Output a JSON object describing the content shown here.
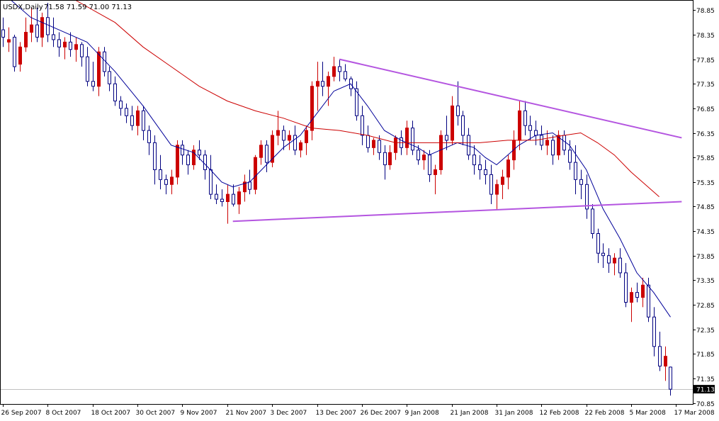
{
  "header": {
    "symbol": "USDX,Daily",
    "ohlc": "71.58 71.59 71.00 71.13"
  },
  "colors": {
    "background": "#ffffff",
    "frame": "#000000",
    "bull_candle": "#cc0000",
    "bear_candle": "#000080",
    "ma_fast": "#000099",
    "ma_slow": "#cc0000",
    "trendline": "#b455e0",
    "bid_line": "#c0c0c0",
    "price_tag_bg": "#000000",
    "price_tag_fg": "#ffffff"
  },
  "chart_data": {
    "type": "candlestick",
    "ylim": [
      70.85,
      79.05
    ],
    "y_ticks": [
      "78.85",
      "78.35",
      "77.85",
      "77.35",
      "76.85",
      "76.35",
      "75.85",
      "75.35",
      "74.85",
      "74.35",
      "73.85",
      "73.35",
      "72.85",
      "72.35",
      "71.85",
      "71.35",
      "70.85"
    ],
    "x_labels": [
      {
        "i": 0,
        "label": "26 Sep 2007"
      },
      {
        "i": 8,
        "label": "8 Oct 2007"
      },
      {
        "i": 16,
        "label": "18 Oct 2007"
      },
      {
        "i": 24,
        "label": "30 Oct 2007"
      },
      {
        "i": 32,
        "label": "9 Nov 2007"
      },
      {
        "i": 40,
        "label": "21 Nov 2007"
      },
      {
        "i": 48,
        "label": "3 Dec 2007"
      },
      {
        "i": 56,
        "label": "13 Dec 2007"
      },
      {
        "i": 64,
        "label": "26 Dec 2007"
      },
      {
        "i": 72,
        "label": "9 Jan 2008"
      },
      {
        "i": 80,
        "label": "21 Jan 2008"
      },
      {
        "i": 88,
        "label": "31 Jan 2008"
      },
      {
        "i": 96,
        "label": "12 Feb 2008"
      },
      {
        "i": 104,
        "label": "22 Feb 2008"
      },
      {
        "i": 112,
        "label": "5 Mar 2008"
      },
      {
        "i": 120,
        "label": "17 Mar 2008"
      }
    ],
    "candles": [
      [
        78.45,
        78.7,
        78.1,
        78.3
      ],
      [
        78.2,
        78.5,
        78.0,
        78.25
      ],
      [
        78.3,
        78.35,
        77.6,
        77.7
      ],
      [
        77.75,
        78.2,
        77.6,
        78.1
      ],
      [
        78.1,
        78.7,
        78.0,
        78.4
      ],
      [
        78.4,
        78.9,
        78.2,
        78.55
      ],
      [
        78.55,
        78.9,
        78.2,
        78.3
      ],
      [
        78.3,
        78.8,
        78.1,
        78.7
      ],
      [
        78.7,
        79.0,
        78.2,
        78.35
      ],
      [
        78.35,
        78.7,
        78.1,
        78.25
      ],
      [
        78.25,
        78.4,
        77.9,
        78.1
      ],
      [
        78.1,
        78.3,
        77.85,
        78.2
      ],
      [
        78.2,
        78.4,
        77.9,
        78.05
      ],
      [
        78.05,
        78.3,
        77.8,
        78.15
      ],
      [
        78.15,
        78.2,
        77.7,
        77.9
      ],
      [
        77.9,
        78.1,
        77.3,
        77.4
      ],
      [
        77.4,
        77.8,
        77.2,
        77.3
      ],
      [
        77.3,
        78.1,
        77.1,
        78.0
      ],
      [
        78.0,
        78.1,
        77.5,
        77.6
      ],
      [
        77.6,
        77.7,
        77.2,
        77.35
      ],
      [
        77.35,
        77.5,
        76.9,
        77.0
      ],
      [
        77.0,
        77.1,
        76.7,
        76.85
      ],
      [
        76.85,
        76.95,
        76.55,
        76.7
      ],
      [
        76.7,
        76.9,
        76.4,
        76.5
      ],
      [
        76.5,
        76.9,
        76.3,
        76.8
      ],
      [
        76.8,
        76.9,
        76.2,
        76.4
      ],
      [
        76.4,
        76.5,
        75.9,
        76.15
      ],
      [
        76.15,
        76.3,
        75.3,
        75.6
      ],
      [
        75.6,
        75.9,
        75.2,
        75.4
      ],
      [
        75.4,
        75.5,
        75.1,
        75.3
      ],
      [
        75.3,
        75.6,
        75.1,
        75.45
      ],
      [
        75.45,
        76.2,
        75.3,
        76.1
      ],
      [
        76.1,
        76.2,
        75.7,
        75.9
      ],
      [
        75.9,
        76.0,
        75.5,
        75.7
      ],
      [
        75.7,
        76.1,
        75.6,
        76.0
      ],
      [
        76.0,
        76.2,
        75.8,
        75.9
      ],
      [
        75.9,
        76.0,
        75.4,
        75.6
      ],
      [
        75.6,
        75.9,
        75.0,
        75.1
      ],
      [
        75.1,
        75.3,
        74.9,
        75.0
      ],
      [
        75.0,
        75.2,
        74.85,
        74.95
      ],
      [
        74.95,
        75.3,
        74.5,
        75.1
      ],
      [
        75.1,
        75.3,
        74.85,
        74.9
      ],
      [
        74.9,
        75.25,
        74.7,
        75.15
      ],
      [
        75.15,
        75.5,
        74.95,
        75.35
      ],
      [
        75.35,
        75.6,
        75.1,
        75.2
      ],
      [
        75.2,
        75.9,
        75.1,
        75.85
      ],
      [
        75.85,
        76.2,
        75.7,
        76.1
      ],
      [
        76.1,
        76.2,
        75.55,
        75.75
      ],
      [
        75.75,
        76.4,
        75.65,
        76.3
      ],
      [
        76.3,
        76.8,
        76.1,
        76.4
      ],
      [
        76.4,
        76.5,
        76.0,
        76.2
      ],
      [
        76.2,
        76.4,
        76.0,
        76.3
      ],
      [
        76.3,
        76.5,
        75.9,
        76.0
      ],
      [
        76.0,
        76.2,
        75.85,
        76.15
      ],
      [
        76.15,
        76.5,
        75.9,
        76.4
      ],
      [
        76.4,
        77.4,
        76.2,
        77.3
      ],
      [
        77.3,
        77.8,
        76.8,
        77.4
      ],
      [
        77.4,
        77.8,
        77.1,
        77.3
      ],
      [
        77.3,
        77.6,
        76.9,
        77.5
      ],
      [
        77.5,
        77.9,
        77.4,
        77.7
      ],
      [
        77.7,
        77.85,
        77.4,
        77.6
      ],
      [
        77.6,
        77.75,
        77.4,
        77.45
      ],
      [
        77.45,
        77.5,
        77.1,
        77.25
      ],
      [
        77.25,
        77.4,
        76.6,
        76.7
      ],
      [
        76.7,
        76.9,
        76.1,
        76.3
      ],
      [
        76.3,
        76.5,
        75.95,
        76.05
      ],
      [
        76.05,
        76.25,
        75.9,
        76.2
      ],
      [
        76.2,
        76.3,
        75.8,
        75.95
      ],
      [
        75.95,
        76.1,
        75.4,
        75.7
      ],
      [
        75.7,
        76.1,
        75.6,
        75.95
      ],
      [
        75.95,
        76.3,
        75.8,
        76.25
      ],
      [
        76.25,
        76.4,
        75.9,
        76.05
      ],
      [
        76.05,
        76.6,
        75.9,
        76.45
      ],
      [
        76.45,
        76.6,
        75.9,
        76.0
      ],
      [
        76.0,
        76.1,
        75.7,
        75.8
      ],
      [
        75.8,
        76.0,
        75.6,
        75.9
      ],
      [
        75.9,
        76.0,
        75.35,
        75.5
      ],
      [
        75.5,
        75.7,
        75.1,
        75.6
      ],
      [
        75.6,
        76.4,
        75.5,
        76.3
      ],
      [
        76.3,
        76.7,
        76.0,
        76.2
      ],
      [
        76.2,
        77.1,
        76.1,
        76.9
      ],
      [
        76.9,
        77.4,
        76.5,
        76.7
      ],
      [
        76.7,
        76.8,
        76.1,
        76.3
      ],
      [
        76.3,
        76.45,
        75.8,
        75.9
      ],
      [
        75.9,
        76.1,
        75.5,
        75.7
      ],
      [
        75.7,
        75.9,
        75.4,
        75.6
      ],
      [
        75.6,
        75.8,
        75.3,
        75.5
      ],
      [
        75.5,
        75.7,
        74.9,
        75.1
      ],
      [
        75.1,
        75.4,
        74.8,
        75.3
      ],
      [
        75.3,
        75.6,
        75.0,
        75.45
      ],
      [
        75.45,
        75.9,
        75.2,
        75.8
      ],
      [
        75.8,
        76.4,
        75.6,
        76.2
      ],
      [
        76.2,
        77.0,
        76.0,
        76.8
      ],
      [
        76.8,
        77.0,
        76.3,
        76.5
      ],
      [
        76.5,
        76.7,
        76.2,
        76.4
      ],
      [
        76.4,
        76.6,
        76.1,
        76.3
      ],
      [
        76.3,
        76.5,
        76.0,
        76.1
      ],
      [
        76.1,
        76.4,
        75.9,
        76.2
      ],
      [
        76.2,
        76.3,
        75.7,
        75.9
      ],
      [
        75.9,
        76.4,
        75.8,
        76.3
      ],
      [
        76.3,
        76.4,
        75.9,
        76.0
      ],
      [
        76.0,
        76.2,
        75.6,
        75.75
      ],
      [
        75.75,
        76.1,
        75.1,
        75.4
      ],
      [
        75.4,
        75.6,
        75.0,
        75.3
      ],
      [
        75.3,
        75.5,
        74.6,
        74.8
      ],
      [
        74.8,
        74.9,
        74.2,
        74.3
      ],
      [
        74.3,
        74.4,
        73.7,
        73.9
      ],
      [
        73.9,
        74.1,
        73.6,
        73.85
      ],
      [
        73.85,
        74.0,
        73.5,
        73.7
      ],
      [
        73.7,
        73.9,
        73.45,
        73.8
      ],
      [
        73.8,
        74.0,
        73.4,
        73.5
      ],
      [
        73.5,
        73.7,
        72.8,
        72.9
      ],
      [
        72.9,
        73.2,
        72.5,
        73.1
      ],
      [
        73.1,
        73.3,
        72.9,
        73.0
      ],
      [
        73.0,
        73.4,
        72.8,
        73.25
      ],
      [
        73.25,
        73.4,
        72.5,
        72.6
      ],
      [
        72.6,
        72.8,
        71.8,
        72.0
      ],
      [
        72.0,
        72.3,
        71.5,
        71.6
      ],
      [
        71.6,
        72.0,
        71.3,
        71.8
      ],
      [
        71.58,
        71.59,
        71.0,
        71.13
      ]
    ],
    "series": [
      {
        "type": "line",
        "points": [
          [
            0,
            79.2
          ],
          [
            5,
            78.7
          ],
          [
            10,
            78.45
          ],
          [
            15,
            78.2
          ],
          [
            20,
            77.6
          ],
          [
            25,
            76.9
          ],
          [
            30,
            76.1
          ],
          [
            34,
            75.95
          ],
          [
            37,
            75.6
          ],
          [
            39,
            75.35
          ],
          [
            41,
            75.25
          ],
          [
            44,
            75.35
          ],
          [
            47,
            75.7
          ],
          [
            50,
            76.05
          ],
          [
            53,
            76.3
          ],
          [
            56,
            76.75
          ],
          [
            59,
            77.2
          ],
          [
            62,
            77.35
          ],
          [
            65,
            76.9
          ],
          [
            68,
            76.4
          ],
          [
            71,
            76.2
          ],
          [
            74,
            76.05
          ],
          [
            76,
            75.9
          ],
          [
            79,
            76.05
          ],
          [
            81,
            76.15
          ],
          [
            84,
            76.05
          ],
          [
            86,
            75.85
          ],
          [
            88,
            75.7
          ],
          [
            90,
            75.9
          ],
          [
            92,
            76.1
          ],
          [
            95,
            76.3
          ],
          [
            98,
            76.35
          ],
          [
            101,
            76.1
          ],
          [
            104,
            75.6
          ],
          [
            107,
            74.8
          ],
          [
            110,
            74.2
          ],
          [
            113,
            73.5
          ],
          [
            116,
            73.1
          ],
          [
            119,
            72.6
          ]
        ]
      },
      {
        "type": "line",
        "points": [
          [
            13,
            79.05
          ],
          [
            20,
            78.6
          ],
          [
            25,
            78.1
          ],
          [
            30,
            77.7
          ],
          [
            35,
            77.3
          ],
          [
            40,
            77.0
          ],
          [
            45,
            76.8
          ],
          [
            50,
            76.65
          ],
          [
            55,
            76.45
          ],
          [
            60,
            76.4
          ],
          [
            65,
            76.3
          ],
          [
            70,
            76.15
          ],
          [
            75,
            76.15
          ],
          [
            80,
            76.15
          ],
          [
            85,
            76.15
          ],
          [
            90,
            76.2
          ],
          [
            95,
            76.2
          ],
          [
            100,
            76.3
          ],
          [
            103,
            76.35
          ],
          [
            106,
            76.15
          ],
          [
            109,
            75.9
          ],
          [
            112,
            75.55
          ],
          [
            115,
            75.25
          ],
          [
            117,
            75.05
          ]
        ]
      }
    ],
    "lines": [
      {
        "from": [
          60,
          77.85
        ],
        "to": [
          121,
          76.25
        ]
      },
      {
        "from": [
          41,
          74.55
        ],
        "to": [
          121,
          74.95
        ]
      }
    ],
    "current_price": 71.13
  }
}
